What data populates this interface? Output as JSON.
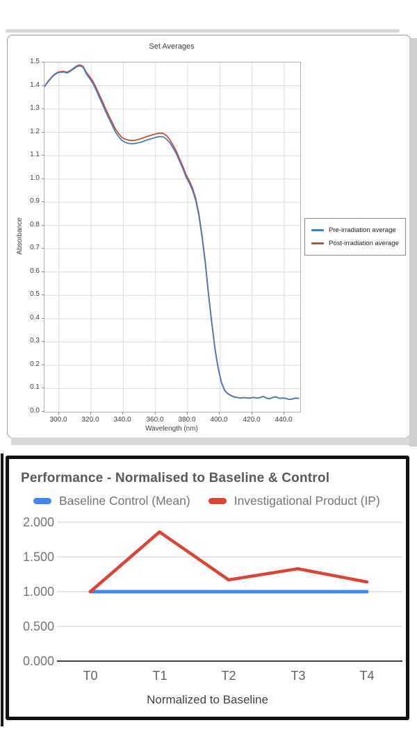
{
  "colors": {
    "spectral_pre": "#4a7cb8",
    "spectral_post": "#c2503c",
    "perf_baseline": "#4285f4",
    "perf_ip": "#db4437",
    "grid_light": "#dcdcdc",
    "perf_grid": "#cccccc",
    "perf_axis": "#424242"
  },
  "chart_data": [
    {
      "type": "line",
      "title": "Set Averages",
      "xlabel": "Wavelength (nm)",
      "ylabel": "Absorbance",
      "xlim": [
        291,
        450
      ],
      "ylim": [
        0,
        1.5
      ],
      "grid": true,
      "legend_position": "right",
      "x_tick_values": [
        300,
        320,
        340,
        360,
        380,
        400,
        420,
        440
      ],
      "x_tick_labels": [
        "300.0",
        "320.0",
        "340.0",
        "360.0",
        "380.0",
        "400.0",
        "420.0",
        "440.0"
      ],
      "y_tick_values": [
        1.5,
        1.4,
        1.3,
        1.2,
        1.1,
        1.0,
        0.9,
        0.8,
        0.7,
        0.6,
        0.5,
        0.4,
        0.3,
        0.2,
        0.1,
        0.0
      ],
      "y_tick_labels": [
        "1.5",
        "1.4",
        "1.3",
        "1.2",
        "1.1",
        "1.0",
        "0.9",
        "0.8",
        "0.7",
        "0.6",
        "0.5",
        "0.4",
        "0.3",
        "0.2",
        "0.1",
        "0.0"
      ],
      "x": [
        291,
        293,
        295,
        297,
        299,
        301,
        303,
        305,
        307,
        309,
        311,
        313,
        315,
        317,
        319,
        321,
        323,
        325,
        327,
        329,
        331,
        333,
        335,
        337,
        339,
        341,
        343,
        345,
        347,
        349,
        351,
        353,
        355,
        357,
        359,
        361,
        363,
        365,
        367,
        369,
        371,
        373,
        375,
        377,
        379,
        381,
        383,
        385,
        387,
        389,
        391,
        393,
        395,
        397,
        399,
        401,
        403,
        405,
        407,
        409,
        411,
        413,
        415,
        417,
        419,
        421,
        423,
        425,
        427,
        429,
        431,
        433,
        435,
        437,
        439,
        441,
        443,
        445,
        447,
        449
      ],
      "series": [
        {
          "name": "Pre-irradiation average",
          "color": "#4a7cb8",
          "values": [
            1.396,
            1.415,
            1.432,
            1.446,
            1.455,
            1.458,
            1.459,
            1.455,
            1.462,
            1.472,
            1.482,
            1.486,
            1.48,
            1.452,
            1.432,
            1.412,
            1.383,
            1.352,
            1.322,
            1.29,
            1.26,
            1.232,
            1.203,
            1.182,
            1.166,
            1.158,
            1.153,
            1.151,
            1.152,
            1.155,
            1.158,
            1.163,
            1.168,
            1.172,
            1.176,
            1.18,
            1.182,
            1.18,
            1.17,
            1.155,
            1.132,
            1.108,
            1.076,
            1.045,
            1.008,
            0.983,
            0.952,
            0.908,
            0.842,
            0.748,
            0.638,
            0.5,
            0.38,
            0.27,
            0.185,
            0.125,
            0.092,
            0.077,
            0.069,
            0.063,
            0.061,
            0.059,
            0.061,
            0.059,
            0.059,
            0.062,
            0.059,
            0.061,
            0.066,
            0.059,
            0.056,
            0.062,
            0.064,
            0.058,
            0.059,
            0.058,
            0.053,
            0.055,
            0.059,
            0.058
          ]
        },
        {
          "name": "Post-irradiation average",
          "color": "#c2503c",
          "values": [
            1.397,
            1.417,
            1.434,
            1.448,
            1.457,
            1.461,
            1.462,
            1.458,
            1.465,
            1.475,
            1.485,
            1.49,
            1.484,
            1.458,
            1.44,
            1.421,
            1.393,
            1.363,
            1.333,
            1.302,
            1.272,
            1.244,
            1.216,
            1.195,
            1.179,
            1.171,
            1.167,
            1.165,
            1.166,
            1.169,
            1.173,
            1.178,
            1.183,
            1.187,
            1.191,
            1.195,
            1.197,
            1.195,
            1.185,
            1.168,
            1.144,
            1.119,
            1.086,
            1.055,
            1.018,
            0.993,
            0.962,
            0.917,
            0.85,
            0.755,
            0.644,
            0.505,
            0.384,
            0.273,
            0.187,
            0.127,
            0.093,
            0.078,
            0.07,
            0.064,
            0.061,
            0.059,
            0.061,
            0.059,
            0.059,
            0.062,
            0.059,
            0.061,
            0.066,
            0.059,
            0.056,
            0.062,
            0.064,
            0.058,
            0.059,
            0.058,
            0.053,
            0.055,
            0.059,
            0.058
          ]
        }
      ]
    },
    {
      "type": "line",
      "title": "Performance - Normalised to Baseline & Control",
      "xlabel": "Normalized to Baseline",
      "categories": [
        "T0",
        "T1",
        "T2",
        "T3",
        "T4"
      ],
      "ylim": [
        0,
        2.0
      ],
      "grid": true,
      "legend_position": "top",
      "y_tick_values": [
        2.0,
        1.5,
        1.0,
        0.5,
        0.0
      ],
      "y_tick_labels": [
        "2.000",
        "1.500",
        "1.000",
        "0.500",
        "0.000"
      ],
      "series": [
        {
          "name": "Baseline Control (Mean)",
          "color": "#4285f4",
          "values": [
            1.0,
            1.0,
            1.0,
            1.0,
            1.0
          ]
        },
        {
          "name": "Investigational Product (IP)",
          "color": "#db4437",
          "values": [
            1.0,
            1.86,
            1.17,
            1.33,
            1.14
          ]
        }
      ]
    }
  ]
}
